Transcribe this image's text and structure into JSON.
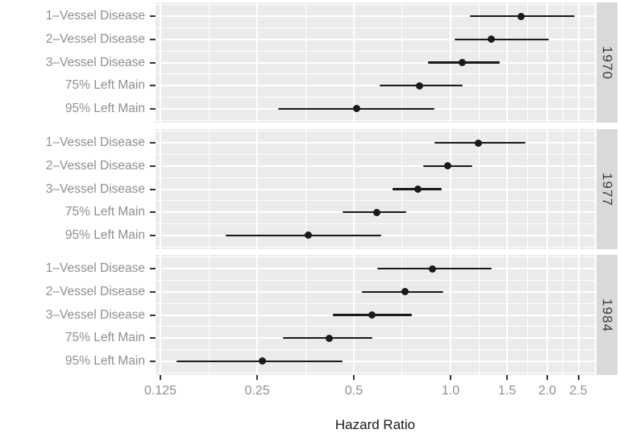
{
  "chart_data": {
    "type": "scatter",
    "subtype": "forest-plot-dot-with-ci-errorbars",
    "title": "",
    "xlabel": "Hazard Ratio",
    "ylabel": "",
    "x_scale": "log2",
    "xlim": [
      0.1207,
      2.813
    ],
    "x_ticks": [
      0.125,
      0.25,
      0.5,
      1.0,
      1.5,
      2.0,
      2.5
    ],
    "x_tick_labels": [
      "0.125",
      "0.25",
      "0.5",
      "1.0",
      "1.5",
      "2.0",
      "2.5"
    ],
    "x_minor_ticks": [
      0.1768,
      0.3536,
      0.7071,
      1.2247,
      1.7321,
      2.2361
    ],
    "categories": [
      "1–Vessel Disease",
      "2–Vessel Disease",
      "3–Vessel Disease",
      "75% Left Main",
      "95% Left Main"
    ],
    "legend_position": "none",
    "grid": "white major and minor gridlines on grey panel",
    "facet_strip_position": "right",
    "panels": [
      {
        "facet": "1970",
        "rows": [
          {
            "label": "1–Vessel Disease",
            "hr": 1.66,
            "lo": 1.15,
            "hi": 2.44
          },
          {
            "label": "2–Vessel Disease",
            "hr": 1.34,
            "lo": 1.03,
            "hi": 2.02
          },
          {
            "label": "3–Vessel Disease",
            "hr": 1.09,
            "lo": 0.85,
            "hi": 1.42
          },
          {
            "label": "75% Left Main",
            "hr": 0.8,
            "lo": 0.6,
            "hi": 1.09
          },
          {
            "label": "95% Left Main",
            "hr": 0.51,
            "lo": 0.29,
            "hi": 0.89
          }
        ]
      },
      {
        "facet": "1977",
        "rows": [
          {
            "label": "1–Vessel Disease",
            "hr": 1.22,
            "lo": 0.89,
            "hi": 1.71
          },
          {
            "label": "2–Vessel Disease",
            "hr": 0.98,
            "lo": 0.82,
            "hi": 1.17
          },
          {
            "label": "3–Vessel Disease",
            "hr": 0.79,
            "lo": 0.66,
            "hi": 0.94
          },
          {
            "label": "75% Left Main",
            "hr": 0.59,
            "lo": 0.46,
            "hi": 0.73
          },
          {
            "label": "95% Left Main",
            "hr": 0.36,
            "lo": 0.2,
            "hi": 0.61
          }
        ]
      },
      {
        "facet": "1984",
        "rows": [
          {
            "label": "1–Vessel Disease",
            "hr": 0.88,
            "lo": 0.59,
            "hi": 1.34
          },
          {
            "label": "2–Vessel Disease",
            "hr": 0.72,
            "lo": 0.53,
            "hi": 0.95
          },
          {
            "label": "3–Vessel Disease",
            "hr": 0.57,
            "lo": 0.43,
            "hi": 0.76
          },
          {
            "label": "75% Left Main",
            "hr": 0.42,
            "lo": 0.3,
            "hi": 0.57
          },
          {
            "label": "95% Left Main",
            "hr": 0.26,
            "lo": 0.14,
            "hi": 0.46
          }
        ]
      }
    ]
  },
  "colors": {
    "panel_bg": "#ebebeb",
    "strip_bg": "#d9d9d9",
    "strip_text": "#404040",
    "grid": "#ffffff",
    "data": "#1a1a1a",
    "axis_text": "#8f8f8f",
    "axis_title": "#1a1a1a",
    "tick": "#333333"
  }
}
